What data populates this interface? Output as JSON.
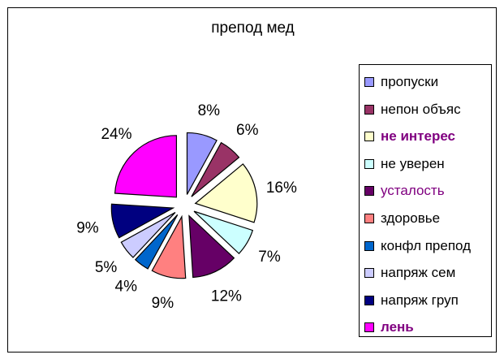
{
  "chart_data": {
    "type": "pie",
    "title": "препод мед",
    "legend": "right",
    "categories": [
      "пропуски",
      "непон объяс",
      "не интерес",
      "не уверен",
      "усталость",
      "здоровье",
      "конфл препод",
      "напряж сем",
      "напряж груп",
      "лень"
    ],
    "values": [
      8,
      6,
      16,
      7,
      12,
      9,
      4,
      5,
      9,
      24
    ],
    "labels": [
      "8%",
      "6%",
      "16%",
      "7%",
      "12%",
      "9%",
      "4%",
      "5%",
      "9%",
      "24%"
    ],
    "colors": [
      "#9999FF",
      "#993366",
      "#FFFFCC",
      "#CCFFFF",
      "#660066",
      "#FF8080",
      "#0066CC",
      "#CCCCFF",
      "#000080",
      "#FF00FF"
    ],
    "legend_text_colors": [
      "#000000",
      "#000000",
      "#800080",
      "#000000",
      "#800080",
      "#000000",
      "#000000",
      "#000000",
      "#000000",
      "#800080"
    ],
    "legend_bold": [
      false,
      false,
      true,
      false,
      false,
      false,
      false,
      false,
      false,
      true
    ]
  }
}
